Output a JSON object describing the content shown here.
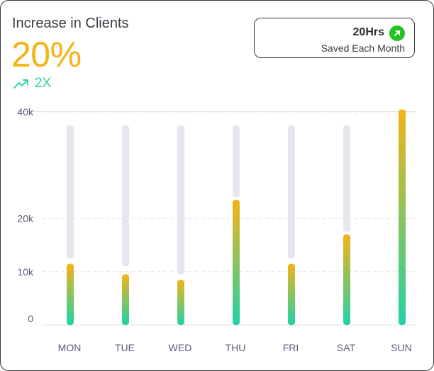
{
  "header": {
    "title": "Increase in Clients",
    "percent": "20%",
    "growth": "2X"
  },
  "saved": {
    "hours": "20Hrs",
    "subtitle": "Saved Each Month"
  },
  "colors": {
    "accent_yellow": "#F5B316",
    "accent_teal": "#2FD3A4",
    "track": "#E6E6EF",
    "badge_green": "#24C223"
  },
  "chart_data": {
    "type": "bar",
    "title": "",
    "xlabel": "",
    "ylabel": "",
    "categories": [
      "MON",
      "TUE",
      "WED",
      "THU",
      "FRI",
      "SAT",
      "SUN"
    ],
    "values": [
      11500,
      9500,
      8500,
      23500,
      11500,
      17000,
      40500
    ],
    "track_values": [
      12500,
      11000,
      9500,
      24000,
      12500,
      17500,
      41500
    ],
    "ytick_labels": [
      "0",
      "10k",
      "20k",
      "40k"
    ],
    "ylim": [
      0,
      50000
    ],
    "grid": true
  }
}
